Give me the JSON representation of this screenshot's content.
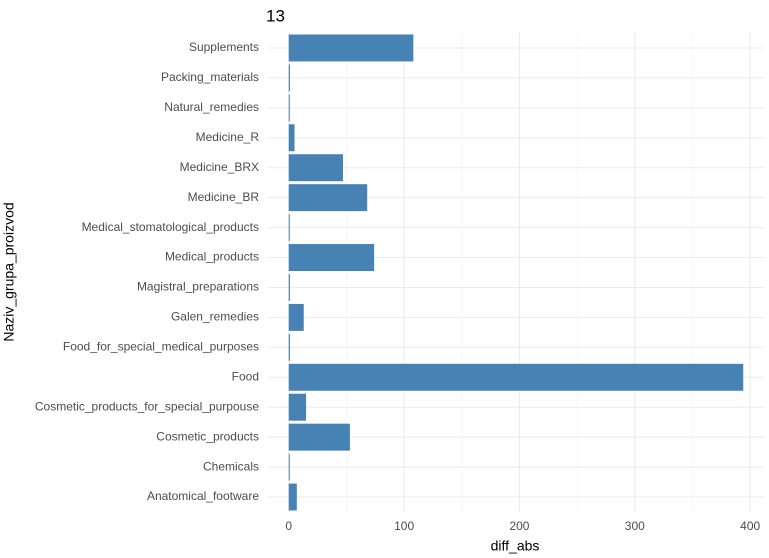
{
  "chart_data": {
    "type": "bar",
    "orientation": "horizontal",
    "title": "13",
    "x_label": "diff_abs",
    "y_label": "Naziv_grupa_proizvod",
    "categories": [
      "Supplements",
      "Packing_materials",
      "Natural_remedies",
      "Medicine_R",
      "Medicine_BRX",
      "Medicine_BR",
      "Medical_stomatological_products",
      "Medical_products",
      "Magistral_preparations",
      "Galen_remedies",
      "Food_for_special_medical_purposes",
      "Food",
      "Cosmetic_products_for_special_purpouse",
      "Cosmetic_products",
      "Chemicals",
      "Anatomical_footware"
    ],
    "values": [
      108,
      1,
      0,
      5,
      47,
      68,
      0,
      74,
      1,
      13,
      1,
      394,
      15,
      53,
      0,
      7
    ],
    "color": "#4682b4",
    "xlim": [
      -18,
      412
    ],
    "xticks": [
      0,
      100,
      200,
      300,
      400
    ],
    "grid": true
  }
}
